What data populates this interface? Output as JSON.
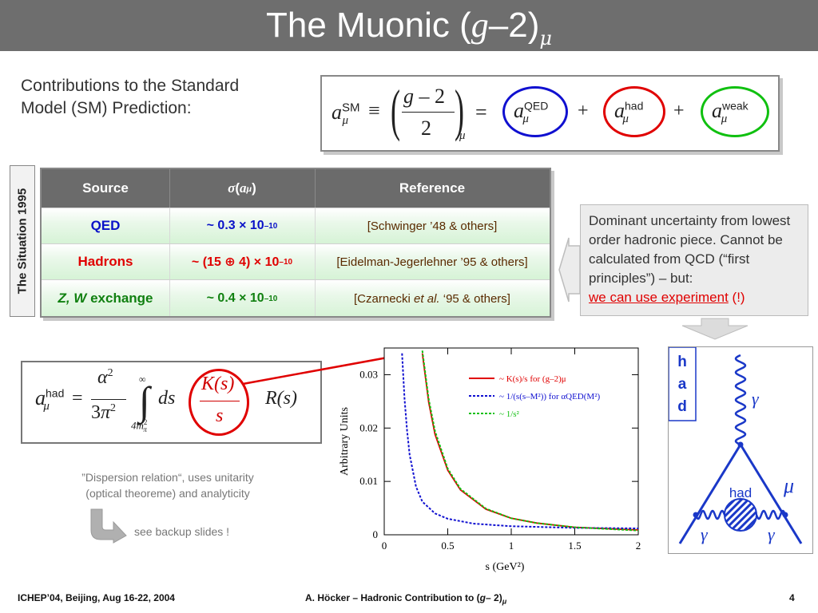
{
  "header": {
    "title_prefix": "The Muonic (",
    "title_g": "g",
    "title_mid": "–2)",
    "title_sub": "μ"
  },
  "intro": {
    "line1": "Contributions to the Standard",
    "line2": "Model (SM) Prediction:"
  },
  "equation": {
    "a": "a",
    "sm": "SM",
    "mu": "μ",
    "equiv": "≡",
    "g": "g",
    "minus": "–",
    "two": "2",
    "eq": "=",
    "qed": "QED",
    "had": "had",
    "weak": "weak",
    "plus": "+",
    "colors": {
      "qed": "#1010d0",
      "had": "#e00000",
      "weak": "#10c010"
    }
  },
  "sidebar": {
    "label": "The Situation 1995"
  },
  "table": {
    "headers": [
      "Source",
      "σ(aμ)",
      "Reference"
    ],
    "rows": [
      {
        "source": "QED",
        "sigma": "~ 0.3 × 10–10",
        "reference": "[Schwinger ’48 & others]",
        "color": "#0a12c8"
      },
      {
        "source": "Hadrons",
        "sigma": "~ (15 ⊕ 4) × 10–10",
        "reference": "[Eidelman-Jegerlehner ’95 & others]",
        "color": "#e00000"
      },
      {
        "source_a": "Z, W",
        "source_b": " exchange",
        "sigma": "~ 0.4 × 10–10",
        "reference_a": "[Czarnecki ",
        "reference_b": "et al.",
        "reference_c": " ‘95 & others]",
        "color": "#108010"
      }
    ]
  },
  "note": {
    "text": "Dominant uncertainty from lowest order hadronic piece. Cannot be calculated from QCD (“first principles”) – but:",
    "highlight": "we can use experiment",
    "tail": " (!)"
  },
  "dispersion": {
    "a": "a",
    "had": "had",
    "mu": "μ",
    "eq": "=",
    "alpha": "α",
    "two": "2",
    "three": "3",
    "pi": "π",
    "inf": "∞",
    "lower": "4m",
    "lower_sub": "π",
    "lower_sup": "2",
    "ds": "ds",
    "K": "K(s)",
    "s": "s",
    "R": "R(s)",
    "caption_line1": "”Dispersion relation“, uses unitarity",
    "caption_line2": "(optical theoreme) and analyticity",
    "backup": "see backup slides !"
  },
  "chart_data": {
    "type": "line",
    "title": "",
    "xlabel": "s   (GeV²)",
    "ylabel": "Arbitrary Units",
    "xlim": [
      0,
      2
    ],
    "ylim": [
      0,
      0.035
    ],
    "xticks": [
      "0",
      "0.5",
      "1",
      "1.5",
      "2"
    ],
    "yticks": [
      "0",
      "0.01",
      "0.02",
      "0.03"
    ],
    "legend_position": "top-right",
    "series": [
      {
        "name": "~ K(s)/s for (g–2)μ",
        "color": "#e00000",
        "style": "solid",
        "x": [
          0.3,
          0.35,
          0.4,
          0.5,
          0.6,
          0.8,
          1.0,
          1.2,
          1.5,
          2.0
        ],
        "y": [
          0.034,
          0.0248,
          0.0188,
          0.0121,
          0.0084,
          0.0048,
          0.0031,
          0.0022,
          0.0014,
          0.0009
        ]
      },
      {
        "name": "~ 1/(s(s–M²)) for αQED(M²)",
        "color": "#1010d0",
        "style": "dotted",
        "x": [
          0.14,
          0.16,
          0.18,
          0.2,
          0.25,
          0.3,
          0.4,
          0.5,
          0.7,
          1.0,
          1.5,
          2.0
        ],
        "y": [
          0.034,
          0.0255,
          0.0195,
          0.015,
          0.009,
          0.0062,
          0.004,
          0.003,
          0.0021,
          0.0016,
          0.0013,
          0.0012
        ]
      },
      {
        "name": "~ 1/s²",
        "color": "#10c010",
        "style": "dotted",
        "x": [
          0.3,
          0.35,
          0.4,
          0.5,
          0.6,
          0.8,
          1.0,
          1.2,
          1.5,
          2.0
        ],
        "y": [
          0.0345,
          0.0254,
          0.0194,
          0.0124,
          0.0086,
          0.0049,
          0.0031,
          0.0022,
          0.0014,
          0.0008
        ]
      }
    ]
  },
  "diagram": {
    "h": "h",
    "a": "a",
    "d": "d",
    "gamma": "γ",
    "mu": "μ",
    "had": "had"
  },
  "footer": {
    "left": "ICHEP’04, Beijing, Aug 16-22, 2004",
    "center_pre": "A. Höcker – Hadronic Contribution to (",
    "center_g": "g",
    "center_mid": "– 2)",
    "center_sub": "μ",
    "page": "4"
  }
}
